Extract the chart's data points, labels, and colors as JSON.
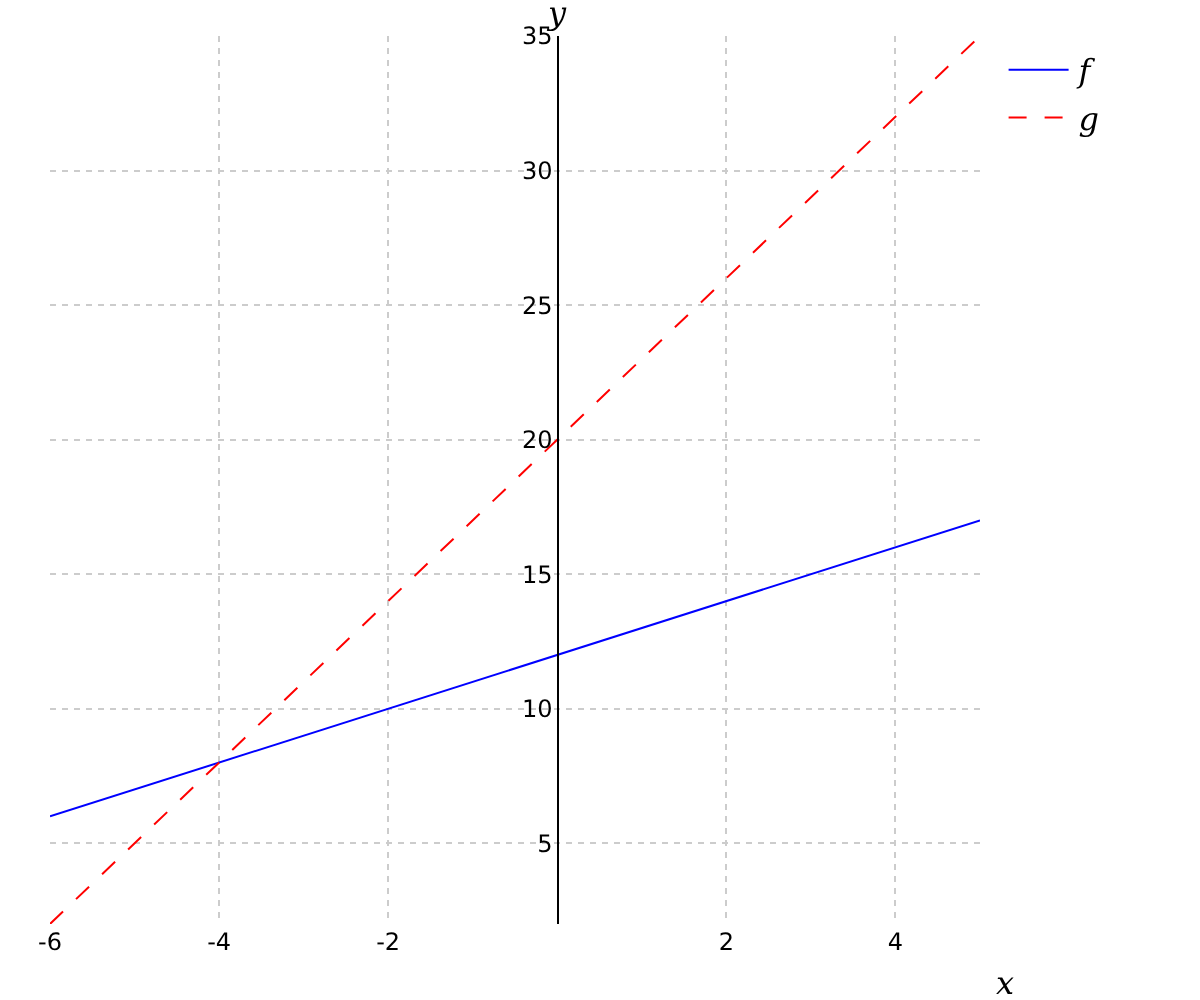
{
  "chart_data": {
    "type": "line",
    "xlabel": "x",
    "ylabel": "y",
    "series": [
      {
        "name": "f",
        "color": "#0000ff",
        "line_style": "solid",
        "values": [
          6,
          17
        ]
      },
      {
        "name": "g",
        "color": "#ff0000",
        "line_style": "dashed",
        "values": [
          2,
          35
        ]
      }
    ],
    "x": [
      -6,
      5
    ],
    "xlim": [
      -6,
      5
    ],
    "ylim": [
      2,
      35
    ],
    "xticks": [
      -6,
      -4,
      -2,
      2,
      4
    ],
    "yticks": [
      5,
      10,
      15,
      20,
      25,
      30,
      35
    ],
    "grid": true,
    "legend": "top right",
    "marker": "none"
  }
}
